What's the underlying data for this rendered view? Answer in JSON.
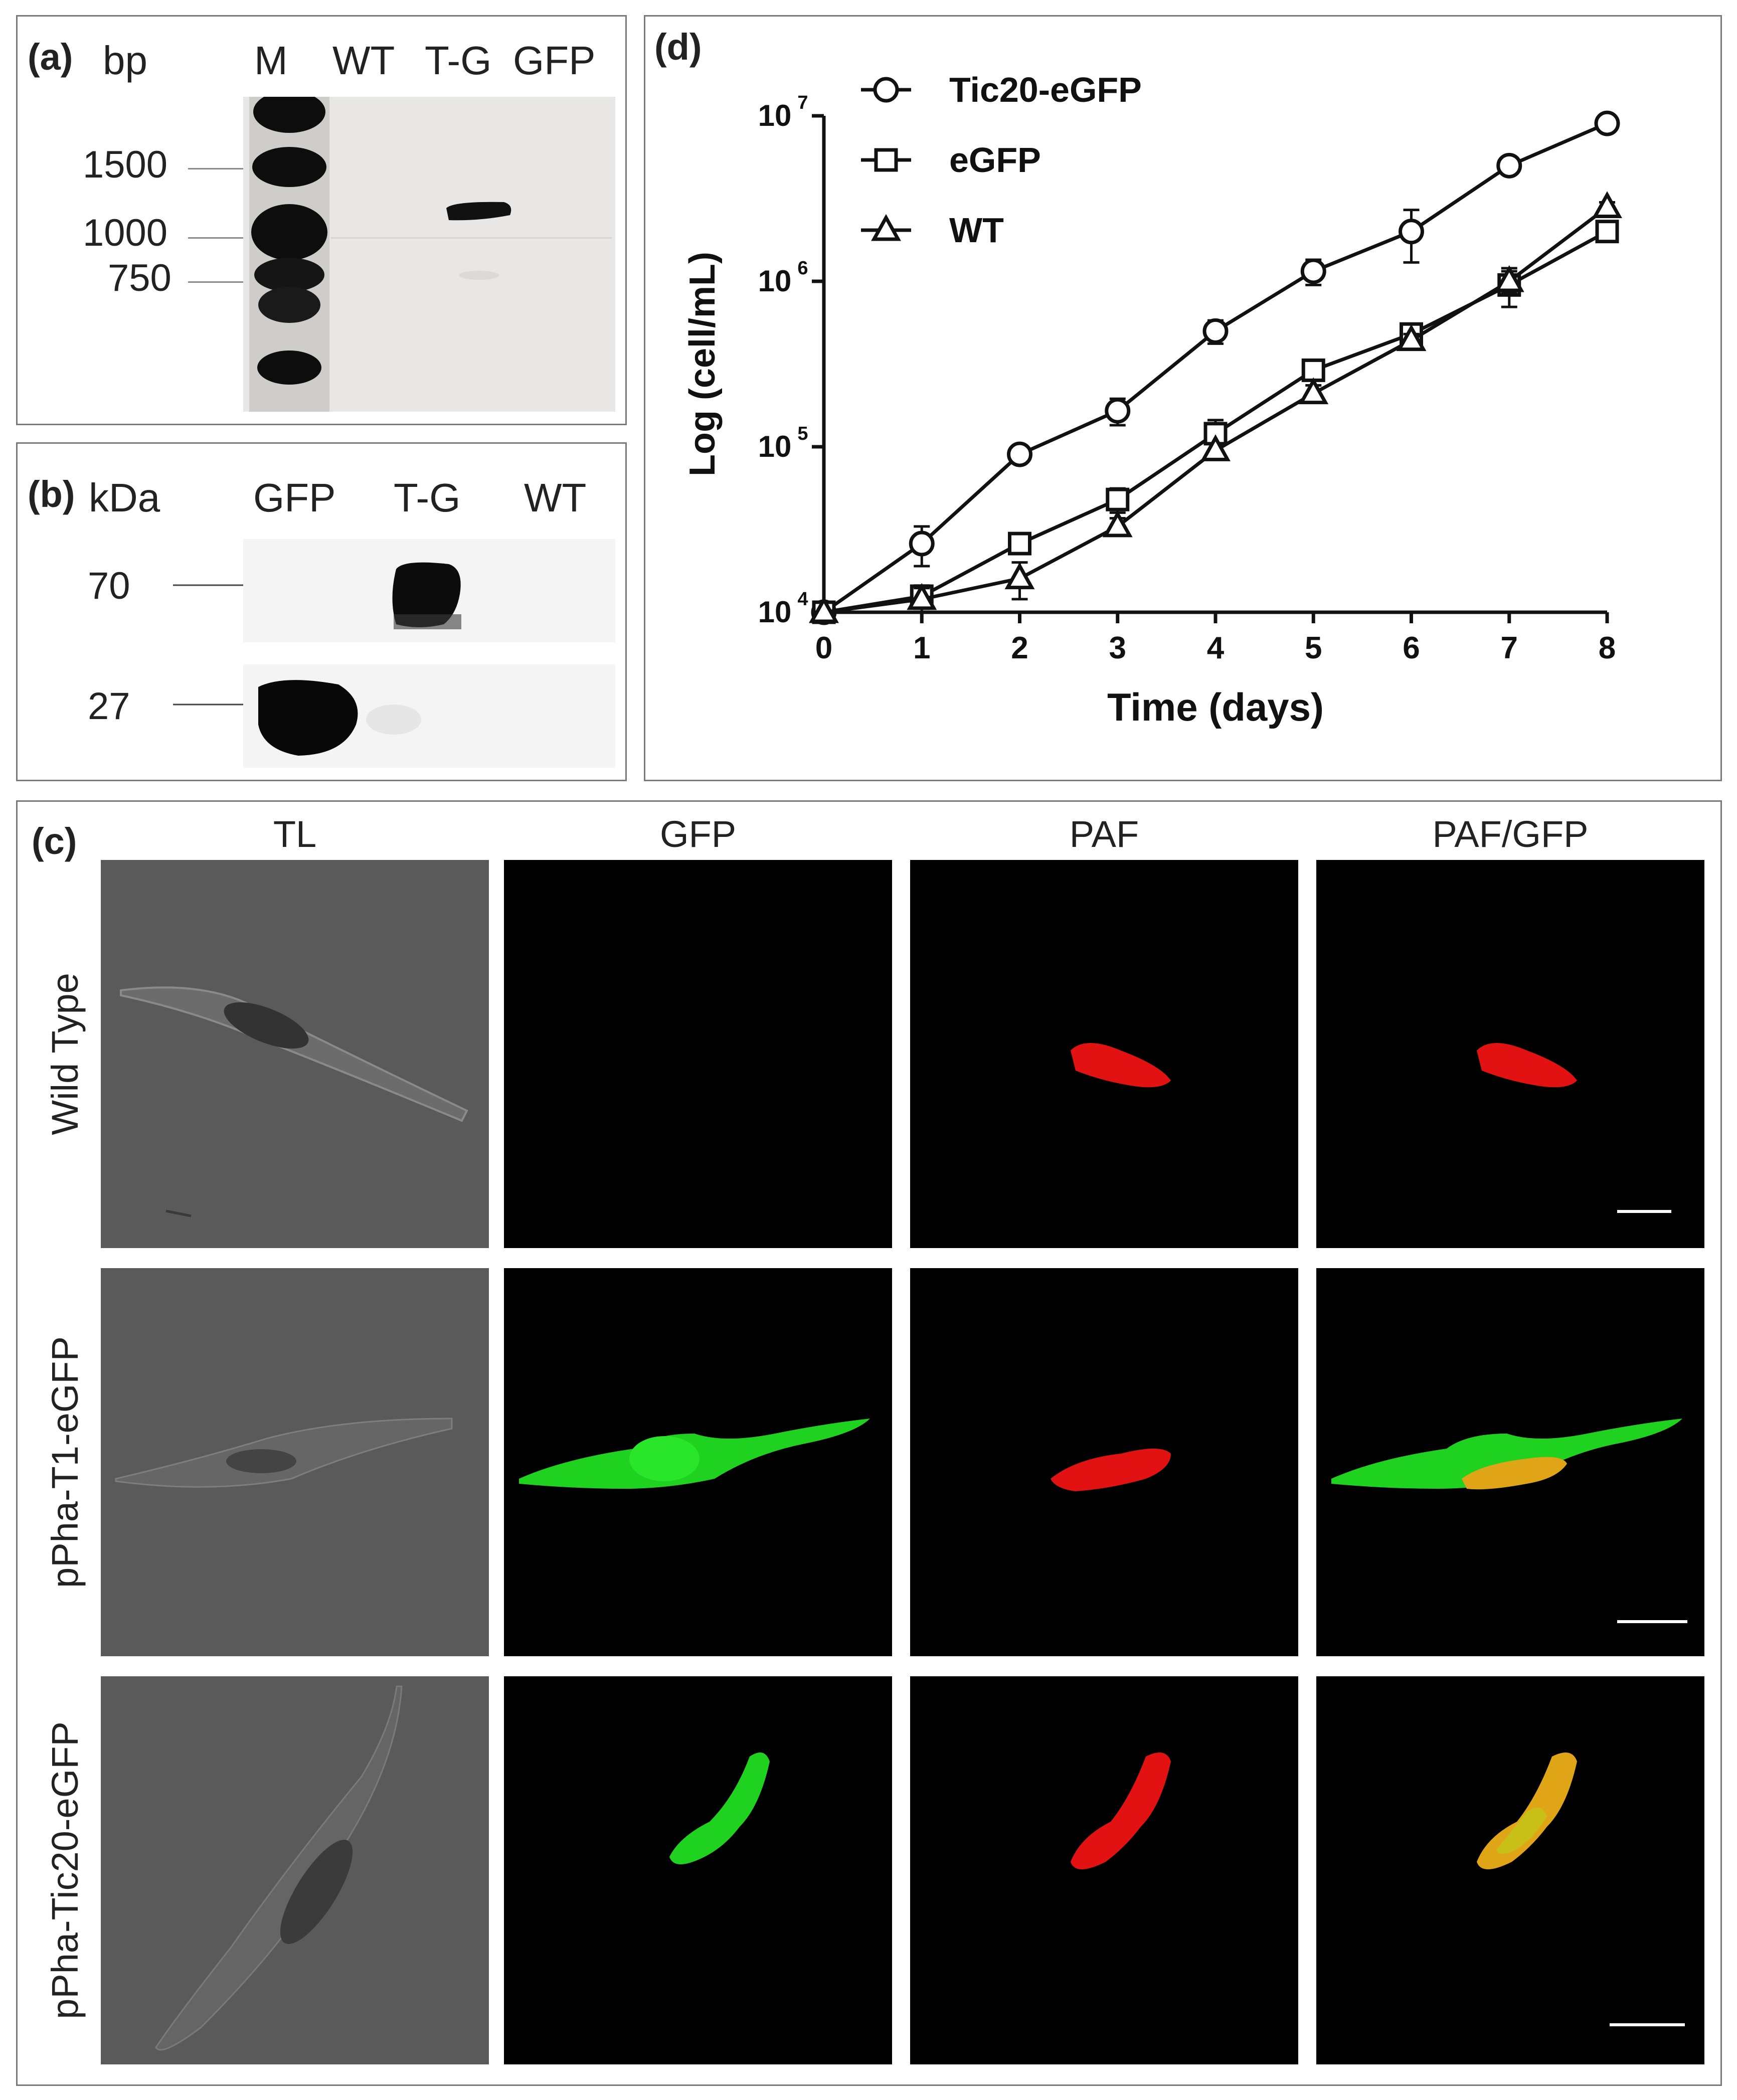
{
  "panel_a": {
    "label": "(a)",
    "unit": "bp",
    "lanes": [
      "M",
      "WT",
      "T-G",
      "GFP"
    ],
    "markers": [
      "1500",
      "1000",
      "750"
    ]
  },
  "panel_b": {
    "label": "(b)",
    "unit": "kDa",
    "lanes": [
      "GFP",
      "T-G",
      "WT"
    ],
    "markers": [
      "70",
      "27"
    ]
  },
  "panel_c": {
    "label": "(c)",
    "columns": [
      "TL",
      "GFP",
      "PAF",
      "PAF/GFP"
    ],
    "rows": [
      "Wild Type",
      "pPha-T1-eGFP",
      "pPha-Tic20-eGFP"
    ],
    "colors": {
      "gfp": "#1fd21f",
      "paf": "#e31212",
      "merge": "#e0a516"
    }
  },
  "panel_d": {
    "label": "(d)",
    "chart_data": {
      "type": "line",
      "xlabel": "Time (days)",
      "ylabel": "Log (cell/mL)",
      "x": [
        0,
        1,
        2,
        3,
        4,
        5,
        6,
        7,
        8
      ],
      "xlim": [
        0,
        8
      ],
      "ylim": [
        10000,
        10000000
      ],
      "yscale": "log",
      "y_ticks": [
        "10",
        "10",
        "10",
        "10"
      ],
      "y_tick_exponents": [
        "4",
        "5",
        "6",
        "7"
      ],
      "legend_position": "top-left",
      "series": [
        {
          "name": "Tic20-eGFP",
          "marker": "circle",
          "values": [
            10000,
            26000,
            90000,
            165000,
            500000,
            1150000,
            2000000,
            5000000,
            9000000
          ],
          "errors": [
            0,
            7000,
            6000,
            30000,
            80000,
            200000,
            700000,
            300000,
            500000
          ]
        },
        {
          "name": "eGFP",
          "marker": "square",
          "values": [
            10000,
            12500,
            26000,
            48000,
            120000,
            290000,
            480000,
            950000,
            2000000
          ],
          "errors": [
            0,
            2000,
            2500,
            8000,
            25000,
            30000,
            50000,
            250000,
            200000
          ]
        },
        {
          "name": "WT",
          "marker": "triangle",
          "values": [
            10000,
            12000,
            16000,
            33000,
            95000,
            210000,
            440000,
            1000000,
            2800000
          ],
          "errors": [
            0,
            2000,
            4000,
            4000,
            10000,
            25000,
            40000,
            150000,
            200000
          ]
        }
      ]
    }
  }
}
